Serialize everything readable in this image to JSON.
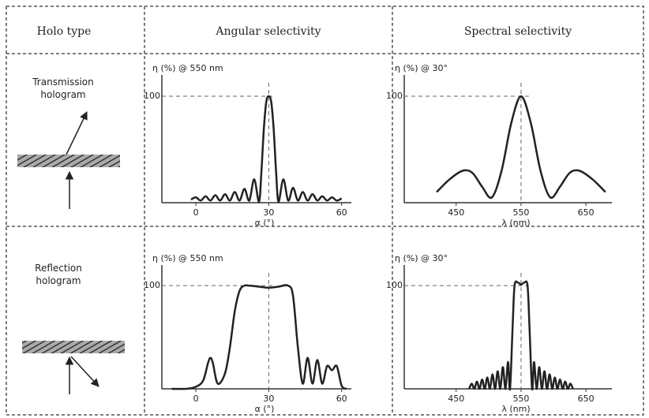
{
  "table": {
    "headers": [
      "Holo type",
      "Angular selectivity",
      "Spectral selectivity"
    ],
    "row_labels": [
      "Transmission hologram",
      "Reflection hologram"
    ]
  },
  "chart_data": [
    {
      "type": "line",
      "ylabel": "η (%) @ 550 nm",
      "xlabel": "α (°)",
      "xlim": [
        -14,
        64
      ],
      "ylim": [
        0,
        120
      ],
      "xticks": [
        0,
        30,
        60
      ],
      "yticks": [
        100
      ],
      "color": "#222222",
      "x": [
        -2,
        0,
        2,
        4,
        6,
        8,
        10,
        12,
        14,
        16,
        18,
        20,
        22,
        24,
        26,
        27,
        28,
        29,
        30,
        31,
        32,
        33,
        34,
        36,
        38,
        40,
        42,
        44,
        46,
        48,
        50,
        52,
        54,
        56,
        58,
        60
      ],
      "values": [
        3,
        5,
        2,
        6,
        2,
        7,
        2,
        8,
        2,
        10,
        2,
        13,
        2,
        22,
        1,
        30,
        70,
        95,
        100,
        95,
        70,
        30,
        1,
        22,
        2,
        14,
        2,
        10,
        2,
        8,
        2,
        6,
        2,
        5,
        2,
        4
      ]
    },
    {
      "type": "line",
      "ylabel": "η (%) @ 30°",
      "xlabel": "λ (nm)",
      "xlim": [
        370,
        690
      ],
      "ylim": [
        0,
        120
      ],
      "xticks": [
        450,
        550,
        650
      ],
      "yticks": [
        100
      ],
      "color": "#222222",
      "x": [
        420,
        440,
        460,
        475,
        490,
        505,
        520,
        535,
        550,
        565,
        580,
        595,
        610,
        625,
        640,
        660,
        680
      ],
      "values": [
        10,
        22,
        30,
        28,
        15,
        5,
        30,
        75,
        100,
        75,
        30,
        5,
        15,
        28,
        30,
        22,
        10
      ]
    },
    {
      "type": "line",
      "ylabel": "η (%) @ 550 nm",
      "xlabel": "α (°)",
      "xlim": [
        -14,
        64
      ],
      "ylim": [
        0,
        120
      ],
      "xticks": [
        0,
        30,
        60
      ],
      "yticks": [
        100
      ],
      "color": "#222222",
      "x": [
        -10,
        -4,
        0,
        3,
        5,
        6,
        7,
        9,
        12,
        14,
        16,
        18,
        20,
        22,
        26,
        30,
        34,
        38,
        40,
        42,
        44,
        46,
        48,
        50,
        52,
        54,
        56,
        58,
        60,
        62
      ],
      "values": [
        0,
        0,
        2,
        8,
        25,
        30,
        25,
        5,
        15,
        40,
        75,
        95,
        100,
        100,
        99,
        98,
        99,
        100,
        90,
        40,
        5,
        30,
        5,
        28,
        5,
        22,
        18,
        22,
        3,
        0
      ]
    },
    {
      "type": "line",
      "ylabel": "η (%) @ 30°",
      "xlabel": "λ (nm)",
      "xlim": [
        370,
        690
      ],
      "ylim": [
        0,
        120
      ],
      "xticks": [
        450,
        550,
        650
      ],
      "yticks": [
        100
      ],
      "color": "#222222",
      "x": [
        470,
        474,
        478,
        482,
        486,
        490,
        494,
        498,
        502,
        506,
        510,
        514,
        518,
        522,
        526,
        530,
        533,
        537,
        540,
        545,
        550,
        555,
        560,
        563,
        567,
        570,
        574,
        578,
        582,
        586,
        590,
        594,
        598,
        602,
        606,
        610,
        614,
        618,
        622,
        626,
        630
      ],
      "values": [
        0,
        5,
        0,
        7,
        0,
        9,
        0,
        11,
        0,
        14,
        0,
        17,
        0,
        21,
        0,
        26,
        0,
        60,
        100,
        103,
        101,
        103,
        100,
        60,
        0,
        26,
        0,
        21,
        0,
        17,
        0,
        14,
        0,
        11,
        0,
        9,
        0,
        7,
        0,
        5,
        0
      ]
    }
  ]
}
